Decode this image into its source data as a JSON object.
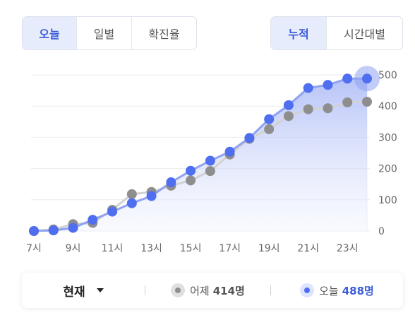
{
  "tabs_left": {
    "items": [
      "오늘",
      "일별",
      "확진율"
    ],
    "active": 0
  },
  "tabs_right": {
    "items": [
      "누적",
      "시간대별"
    ],
    "active": 0
  },
  "footer": {
    "selector_label": "현재",
    "yesterday_label": "어제",
    "yesterday_value": "414명",
    "today_label": "오늘",
    "today_value": "488명"
  },
  "colors": {
    "today": "#4f6ef0",
    "yesterday": "#8e8e8e",
    "accent": "#3a5bd9"
  },
  "chart_data": {
    "type": "line",
    "x": [
      7,
      8,
      9,
      10,
      11,
      12,
      13,
      14,
      15,
      16,
      17,
      18,
      19,
      20,
      21,
      22,
      23,
      24
    ],
    "x_tick_labels": [
      "7시",
      "9시",
      "11시",
      "13시",
      "15시",
      "17시",
      "19시",
      "21시",
      "23시"
    ],
    "x_tick_values": [
      7,
      9,
      11,
      13,
      15,
      17,
      19,
      21,
      23
    ],
    "ylim": [
      0,
      500
    ],
    "yticks": [
      0,
      100,
      200,
      300,
      400,
      500
    ],
    "y_axis_position": "right",
    "series": [
      {
        "name": "어제",
        "color": "#8e8e8e",
        "values": [
          0,
          5,
          22,
          26,
          68,
          118,
          125,
          145,
          162,
          192,
          245,
          295,
          326,
          368,
          390,
          393,
          412,
          414
        ]
      },
      {
        "name": "오늘",
        "color": "#4f6ef0",
        "values": [
          0,
          2,
          10,
          36,
          62,
          89,
          112,
          156,
          193,
          225,
          254,
          298,
          358,
          403,
          458,
          468,
          488,
          488
        ]
      }
    ],
    "area_fill_series": "오늘",
    "highlight_last_point": true
  }
}
